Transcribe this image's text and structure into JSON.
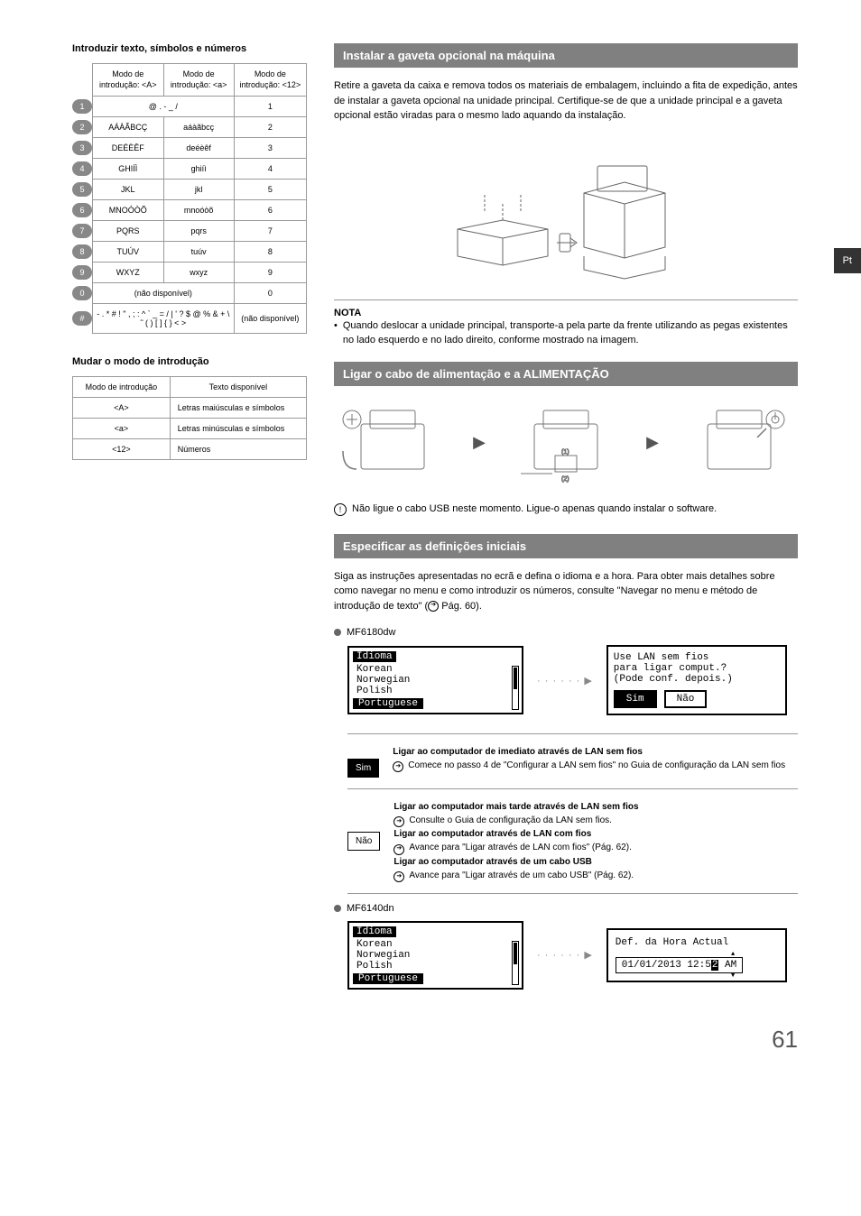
{
  "tab": "Pt",
  "pagenum": "61",
  "left_heading": "Introduzir texto, símbolos e números",
  "keytable": {
    "headers": [
      "Modo de introdução: <A>",
      "Modo de introdução: <a>",
      "Modo de introdução: <12>"
    ],
    "rows": [
      {
        "key": "1",
        "colspan2": "@ . - _ /",
        "c3": "1"
      },
      {
        "key": "2",
        "c1": "AÁÀÃBCÇ",
        "c2": "aáàãbcç",
        "c3": "2"
      },
      {
        "key": "3",
        "c1": "DEÉÈÊF",
        "c2": "deéèêf",
        "c3": "3"
      },
      {
        "key": "4",
        "c1": "GHIÍÌ",
        "c2": "ghiíì",
        "c3": "4"
      },
      {
        "key": "5",
        "c1": "JKL",
        "c2": "jkl",
        "c3": "5"
      },
      {
        "key": "6",
        "c1": "MNOÓÒÕ",
        "c2": "mnoóòõ",
        "c3": "6"
      },
      {
        "key": "7",
        "c1": "PQRS",
        "c2": "pqrs",
        "c3": "7"
      },
      {
        "key": "8",
        "c1": "TUÚV",
        "c2": "tuúv",
        "c3": "8"
      },
      {
        "key": "9",
        "c1": "WXYZ",
        "c2": "wxyz",
        "c3": "9"
      },
      {
        "key": "0",
        "colspan2": "(não disponível)",
        "c3": "0"
      },
      {
        "key": "#",
        "colspan2": "- . * # ! \" , ; : ^ ` _ = / | ' ? $ @ % & + \\ ˜ ( ) [ ] { } < >",
        "c3": "(não disponível)"
      }
    ]
  },
  "mode_heading": "Mudar o modo de introdução",
  "modetable": {
    "headers": [
      "Modo de introdução",
      "Texto disponível"
    ],
    "rows": [
      [
        "<A>",
        "Letras maiúsculas e símbolos"
      ],
      [
        "<a>",
        "Letras minúsculas e símbolos"
      ],
      [
        "<12>",
        "Números"
      ]
    ]
  },
  "sec1": {
    "title": "Instalar a gaveta opcional na máquina",
    "body": "Retire a gaveta da caixa e remova todos os materiais de embalagem, incluindo a fita de expedição, antes de instalar a gaveta opcional na unidade principal. Certifique-se de que a unidade principal e a gaveta opcional estão viradas para o mesmo lado aquando da instalação.",
    "note_hdr": "NOTA",
    "note": "Quando deslocar a unidade principal, transporte-a pela parte da frente utilizando as pegas existentes no lado esquerdo e no lado direito, conforme mostrado na imagem."
  },
  "sec2": {
    "title": "Ligar o cabo de alimentação e a ALIMENTAÇÃO",
    "warn": "Não ligue o cabo USB neste momento. Ligue-o apenas quando instalar o software."
  },
  "sec3": {
    "title": "Especificar as definições iniciais",
    "body": "Siga as instruções apresentadas no ecrã e defina o idioma e a hora. Para obter mais detalhes sobre como navegar no menu e como introduzir os números, consulte \"Navegar no menu e método de introdução de texto\" (",
    "body_ref": " Pág. 60).",
    "model1": "MF6180dw",
    "lcd1": {
      "title": "Idioma",
      "items": [
        "Korean",
        "Norwegian",
        "Polish"
      ],
      "selected": "Portuguese"
    },
    "lcd2": {
      "l1": "Use LAN sem fios",
      "l2": "para ligar comput.?",
      "l3": "(Pode conf. depois.)",
      "btn_sel": "Sim",
      "btn": "Não"
    },
    "opt_sim": {
      "btn": "Sim",
      "h": "Ligar ao computador de imediato através de LAN sem fios",
      "t": "Comece no passo 4 de \"Configurar a LAN sem fios\" no Guia de configuração da LAN sem fios"
    },
    "opt_nao": {
      "btn": "Não",
      "h1": "Ligar ao computador mais tarde através de LAN sem fios",
      "t1": "Consulte o Guia de configuração da LAN sem fios.",
      "h2": "Ligar ao computador através de LAN com fios",
      "t2": "Avance para \"Ligar através de LAN com fios\" (Pág. 62).",
      "h3": "Ligar ao computador através de um cabo USB",
      "t3": "Avance para \"Ligar através de um cabo USB\" (Pág. 62)."
    },
    "model2": "MF6140dn",
    "lcd3": {
      "title": "Def. da Hora Actual",
      "val_pre": "01/01/2013 12:5",
      "val_cur": "2",
      "val_post": " AM"
    }
  }
}
